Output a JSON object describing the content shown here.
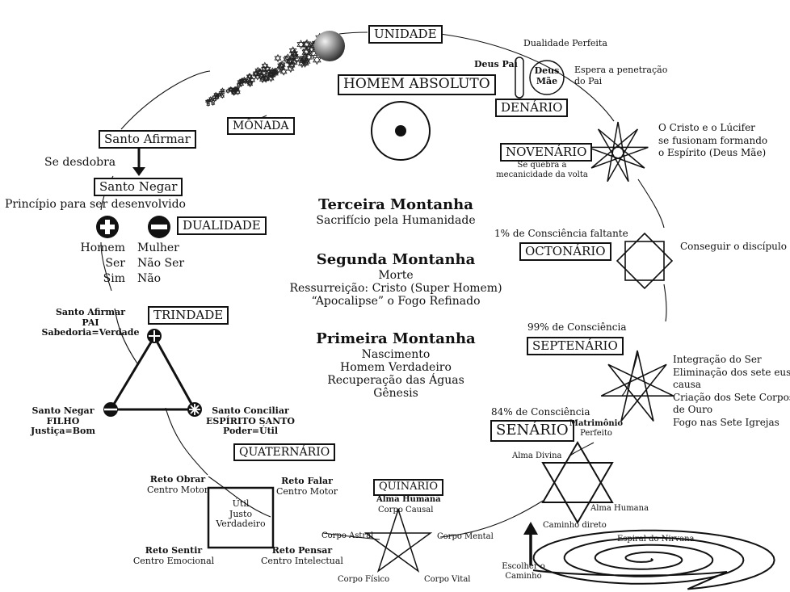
{
  "boxes": {
    "unidade": "UNIDADE",
    "homem_absoluto": "HOMEM ABSOLUTO",
    "monada": "MÔNADA",
    "santo_afirmar": "Santo Afirmar",
    "santo_negar": "Santo Negar",
    "dualidade": "DUALIDADE",
    "trindade": "TRINDADE",
    "quaternario": "QUATERNÁRIO",
    "quinario": "QUINÁRIO",
    "senario": "SENÁRIO",
    "septenario": "SEPTENÁRIO",
    "octonario": "OCTONÁRIO",
    "novenario": "NOVENÁRIO",
    "denario": "DENÁRIO"
  },
  "left": {
    "se_desdobra": "Se desdobra",
    "principio": "Princípio para ser desenvolvido",
    "homem": "Homem",
    "ser": "Ser",
    "sim": "Sim",
    "mulher": "Mulher",
    "nao_ser": "Não Ser",
    "nao": "Não"
  },
  "trindade": {
    "top": [
      "Santo Afirmar",
      "PAI",
      "Sabedoria=Verdade"
    ],
    "left": [
      "Santo Negar",
      "FILHO",
      "Justiça=Bom"
    ],
    "right": [
      "Santo Conciliar",
      "ESPÍRITO SANTO",
      "Poder=Útil"
    ]
  },
  "mountains": {
    "third": {
      "title": "Terceira Montanha",
      "lines": [
        "Sacrifício pela Humanidade"
      ]
    },
    "second": {
      "title": "Segunda Montanha",
      "lines": [
        "Morte",
        "Ressurreição: Cristo (Super Homem)",
        "“Apocalipse” o Fogo Refinado"
      ]
    },
    "first": {
      "title": "Primeira Montanha",
      "lines": [
        "Nascimento",
        "Homem Verdadeiro",
        "Recuperação das Águas",
        "Gênesis"
      ]
    }
  },
  "quaternario": {
    "center": [
      "Útil",
      "Justo",
      "Verdadeiro"
    ],
    "tl": [
      "Reto Obrar",
      "Centro Motor"
    ],
    "tr": [
      "Reto Falar",
      "Centro Motor"
    ],
    "bl": [
      "Reto Sentir",
      "Centro Emocional"
    ],
    "br": [
      "Reto Pensar",
      "Centro Intelectual"
    ]
  },
  "quinario": {
    "alma_humana": "Alma Humana",
    "corpo_causal": "Corpo Causal",
    "corpo_astral": "Corpo Astral",
    "corpo_mental": "Corpo Mental",
    "corpo_fisico": "Corpo Físico",
    "corpo_vital": "Corpo Vital"
  },
  "senario": {
    "consciencia": "84% de Consciência",
    "matrimonio": [
      "Matrimônio",
      "Perfeito"
    ],
    "alma_divina": "Alma Divina",
    "alma_humana": "Alma Humana",
    "caminho_direto": "Caminho direto",
    "espiral": "Espiral do Nirvana",
    "escolher": [
      "Escolher o",
      "Caminho"
    ]
  },
  "septenario": {
    "consciencia": "99% de Consciência",
    "notes": [
      "Integração do Ser",
      "Eliminação dos sete eus",
      "causa",
      "Criação dos Sete Corpos",
      "de Ouro",
      "Fogo nas Sete Igrejas"
    ]
  },
  "octonario": {
    "consciencia": "1% de Consciência faltante",
    "discipulo": "Conseguir o discípulo"
  },
  "novenario": {
    "quebra": [
      "Se quebra a",
      "mecanicidade da volta"
    ],
    "cristo": [
      "O Cristo e o Lúcifer",
      "se fusionam formando",
      "o Espírito (Deus Mãe)"
    ]
  },
  "denario": {
    "dualidade_perfeita": "Dualidade Perfeita",
    "deus_pai": "Deus Pai",
    "deus_mae": [
      "Deus",
      "Mãe"
    ],
    "espera": [
      "Espera a penetração",
      "do Pai"
    ]
  }
}
